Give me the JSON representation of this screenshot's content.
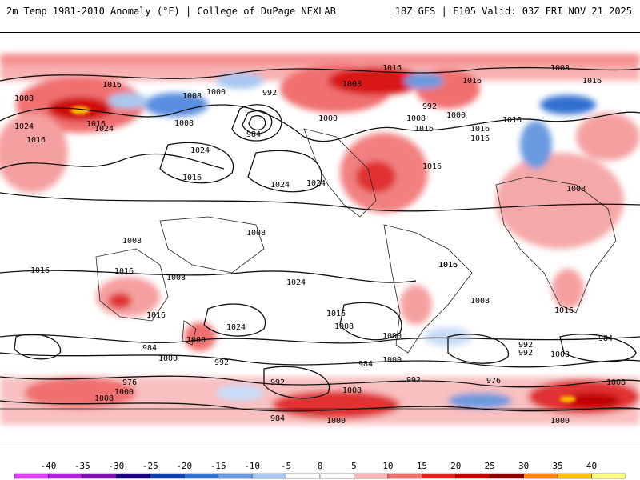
{
  "header": {
    "left_title": "2m Temp 1981-2010 Anomaly (°F) | College of DuPage NEXLAB",
    "right_title": "18Z GFS | F105 Valid: 03Z FRI NOV 21 2025"
  },
  "colorbar": {
    "ticks": [
      "-40",
      "-35",
      "-30",
      "-25",
      "-20",
      "-15",
      "-10",
      "-5",
      "0",
      "5",
      "10",
      "15",
      "20",
      "25",
      "30",
      "35",
      "40"
    ],
    "colors": [
      "#e040ff",
      "#b020e0",
      "#8010b0",
      "#1a0080",
      "#1040b0",
      "#3070d0",
      "#6a9ae0",
      "#a8c8f0",
      "#ffffff",
      "#ffffff",
      "#f8b8b8",
      "#f07070",
      "#e02020",
      "#c00000",
      "#900000",
      "#ff8800",
      "#ffc000",
      "#ffff80"
    ]
  },
  "map": {
    "contour_labels": [
      "1016",
      "1008",
      "1016",
      "1016",
      "1008",
      "992",
      "1000",
      "1016",
      "1000",
      "1024",
      "1016",
      "1024",
      "1008",
      "1008",
      "1016",
      "1008",
      "1000",
      "992",
      "1016",
      "1008",
      "984",
      "1024",
      "1016",
      "1016",
      "1016",
      "1024",
      "1024",
      "1016",
      "1016",
      "1008",
      "1008",
      "1008",
      "1016",
      "1008",
      "1016",
      "1016",
      "1016",
      "1024",
      "1008",
      "1016",
      "1016",
      "1016",
      "1024",
      "1008",
      "1000",
      "1008",
      "984",
      "992",
      "984",
      "992",
      "1008",
      "1000",
      "992",
      "984",
      "1000",
      "976",
      "976",
      "992",
      "992",
      "1008",
      "1000",
      "984",
      "1000",
      "1008",
      "1008",
      "1000"
    ]
  }
}
